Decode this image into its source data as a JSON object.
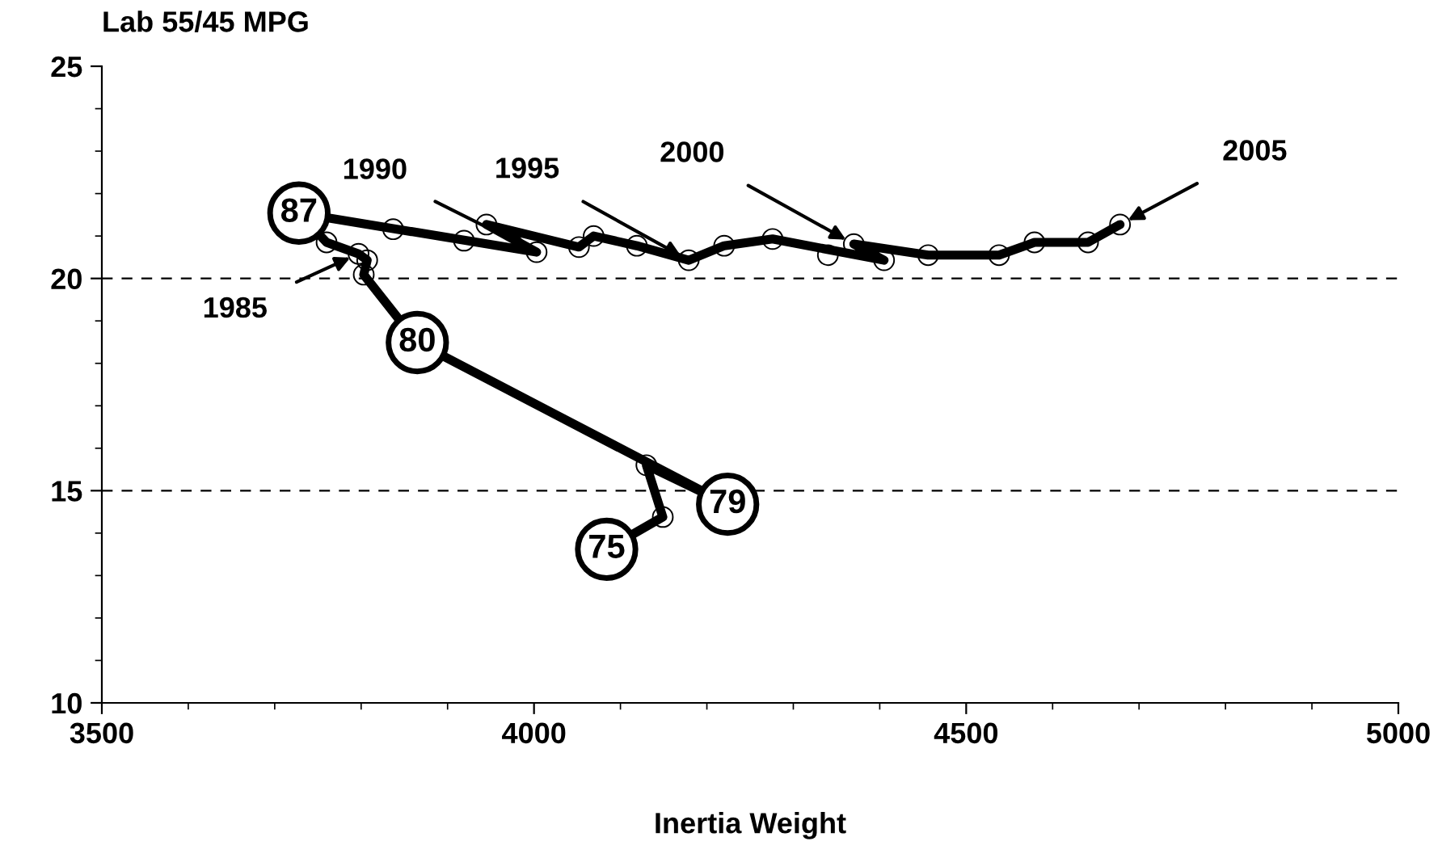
{
  "chart_data": {
    "type": "line",
    "ylabel": "Lab 55/45 MPG",
    "xlabel": "Inertia Weight",
    "xlim": [
      3500,
      5000
    ],
    "xticks": [
      3500,
      4000,
      4500,
      5000
    ],
    "ylim": [
      10,
      25
    ],
    "yticks": [
      10,
      15,
      20,
      25
    ],
    "grid": "y",
    "line_style": "solid",
    "series": [
      {
        "color": "#000000",
        "marker": "none",
        "x": [
          4084,
          4149,
          4130,
          4224,
          3865,
          3803,
          3807,
          3797,
          3760,
          3728,
          4003,
          3945,
          4052,
          4069,
          4119,
          4179,
          4220,
          4276,
          4405,
          4370,
          4456,
          4538,
          4579,
          4641,
          4678
        ],
        "values": [
          13.62,
          14.38,
          15.6,
          14.68,
          18.49,
          20.09,
          20.43,
          20.58,
          20.85,
          21.54,
          20.62,
          21.27,
          20.74,
          21.0,
          20.77,
          20.43,
          20.77,
          20.93,
          20.43,
          20.81,
          20.55,
          20.55,
          20.85,
          20.85,
          21.27
        ]
      },
      {
        "type": "scatter",
        "color": "#000000",
        "marker": "circle",
        "x": [
          3760,
          3797,
          3807,
          3803,
          3837,
          3919,
          3945,
          4003,
          4052,
          4069,
          4119,
          4179,
          4220,
          4276,
          4340,
          4370,
          4405,
          4456,
          4538,
          4579,
          4641,
          4678,
          4130,
          4149
        ],
        "values": [
          20.85,
          20.58,
          20.43,
          20.09,
          21.16,
          20.89,
          21.27,
          20.62,
          20.74,
          21.0,
          20.77,
          20.43,
          20.77,
          20.93,
          20.55,
          20.81,
          20.43,
          20.55,
          20.55,
          20.85,
          20.85,
          21.27,
          15.6,
          14.38
        ]
      }
    ],
    "annotations": [
      {
        "text": "75",
        "x": 4084,
        "y": 13.62
      },
      {
        "text": "79",
        "x": 4224,
        "y": 14.68
      },
      {
        "text": "80",
        "x": 3865,
        "y": 18.49
      },
      {
        "text": "87",
        "x": 3728,
        "y": 21.54
      },
      {
        "text": "1985",
        "x": 3797,
        "y": 20.58
      },
      {
        "text": "1990",
        "x": 4003,
        "y": 20.62
      },
      {
        "text": "1995",
        "x": 4179,
        "y": 20.43
      },
      {
        "text": "2000",
        "x": 4370,
        "y": 20.81
      },
      {
        "text": "2005",
        "x": 4678,
        "y": 21.27
      }
    ]
  }
}
